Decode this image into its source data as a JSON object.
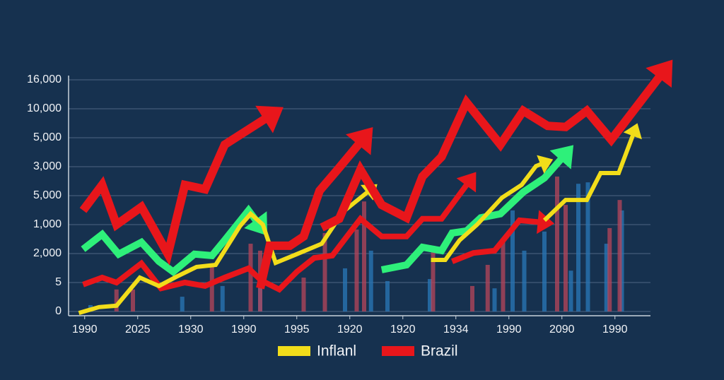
{
  "chart_data": {
    "type": "line",
    "xlim": [
      -0.33,
      11.07
    ],
    "ylim": [
      -0.2,
      8.5
    ],
    "xticks": [
      {
        "value": 0,
        "label": "1990"
      },
      {
        "value": 1,
        "label": "2025"
      },
      {
        "value": 2,
        "label": "1930"
      },
      {
        "value": 3,
        "label": "1990"
      },
      {
        "value": 4,
        "label": "1995"
      },
      {
        "value": 5,
        "label": "1920"
      },
      {
        "value": 6,
        "label": "1920"
      },
      {
        "value": 7,
        "label": "1934"
      },
      {
        "value": 8,
        "label": "1990"
      },
      {
        "value": 9,
        "label": "2090"
      },
      {
        "value": 10,
        "label": "1990"
      }
    ],
    "yticks": [
      0,
      {
        "value": 1,
        "label": "5"
      },
      {
        "value": 2,
        "label": "2,000"
      },
      {
        "value": 3,
        "label": "1,000"
      },
      {
        "value": 4,
        "label": "5,000"
      },
      {
        "value": 5,
        "label": "3,000"
      },
      {
        "value": 6,
        "label": "5,000"
      },
      {
        "value": 7,
        "label": "10,000"
      },
      {
        "value": 8,
        "label": "16,000"
      }
    ],
    "grid": true,
    "legend": "bottom",
    "series": [
      {
        "type": "bar",
        "color": "#2a78b8",
        "x": [
          0.11,
          1.84,
          2.6,
          3.31,
          4.91,
          5.4,
          5.71,
          6.51,
          7.73,
          8.07,
          8.29,
          8.67,
          9.17,
          9.31,
          9.49,
          9.84,
          10.13
        ],
        "values": [
          0.22,
          0.51,
          0.88,
          1.24,
          1.49,
          2.1,
          1.05,
          1.12,
          0.8,
          3.49,
          2.1,
          2.76,
          1.41,
          4.41,
          4.46,
          2.34,
          3.49
        ]
      },
      {
        "type": "bar",
        "color": "#b8455a",
        "x": [
          0.6,
          0.91,
          2.4,
          3.13,
          3.31,
          4.13,
          4.53,
          5.13,
          5.27,
          6.57,
          7.31,
          7.6,
          7.89,
          8.91,
          9.07,
          9.9,
          10.09
        ],
        "values": [
          0.76,
          0.76,
          1.61,
          2.34,
          2.1,
          1.17,
          2.71,
          2.83,
          3.8,
          2.27,
          0.88,
          1.61,
          2.46,
          4.66,
          3.68,
          2.88,
          3.85
        ]
      },
      {
        "color": "#e8161b",
        "x": [
          -0.03,
          0.33,
          0.6,
          1.07,
          1.44,
          1.89,
          2.27,
          2.64,
          3.09,
          3.33,
          3.67,
          4.0,
          4.33,
          4.67,
          5.2,
          5.6,
          6.07,
          6.37,
          6.73,
          7.27,
          null,
          6.93,
          7.33,
          7.73,
          8.2,
          8.67
        ],
        "values": [
          0.93,
          1.17,
          1.0,
          1.66,
          0.8,
          1.0,
          0.88,
          1.17,
          1.49,
          1.07,
          0.76,
          1.37,
          1.85,
          1.93,
          3.2,
          2.59,
          2.59,
          3.2,
          3.2,
          4.54,
          null,
          1.73,
          2.02,
          2.1,
          3.15,
          3.07
        ]
      },
      {
        "color": "#2ef07a",
        "x": [
          -0.03,
          0.33,
          0.64,
          1.07,
          1.4,
          1.67,
          2.07,
          2.4,
          2.64,
          3.09,
          3.31,
          null,
          5.6,
          6.07,
          6.37,
          6.73,
          6.93,
          7.2,
          7.47,
          7.84,
          8.27,
          8.67,
          9.07
        ],
        "values": [
          2.15,
          2.66,
          1.98,
          2.39,
          1.73,
          1.37,
          1.98,
          1.93,
          2.46,
          3.49,
          2.95,
          null,
          1.44,
          1.61,
          2.22,
          2.1,
          2.71,
          2.78,
          3.24,
          3.37,
          4.12,
          4.61,
          5.44
        ]
      },
      {
        "name": "Inflanl",
        "color": "#f2dd1a",
        "x": [
          -0.11,
          0.27,
          0.6,
          1.04,
          1.4,
          1.73,
          2.11,
          2.47,
          2.93,
          3.13,
          3.36,
          3.6,
          4.0,
          4.47,
          4.87,
          5.4,
          null,
          6.53,
          6.8,
          7.07,
          7.4,
          7.87,
          8.24,
          8.51,
          8.69,
          null,
          8.67,
          9.07,
          9.47,
          9.73,
          10.07,
          10.37
        ],
        "values": [
          -0.05,
          0.15,
          0.2,
          1.17,
          0.88,
          1.2,
          1.54,
          1.61,
          2.95,
          3.37,
          3.0,
          1.68,
          1.98,
          2.34,
          3.44,
          4.22,
          null,
          1.78,
          1.78,
          2.46,
          3.0,
          3.93,
          4.37,
          5.02,
          5.15,
          null,
          3.15,
          3.85,
          3.85,
          4.78,
          4.78,
          6.24
        ]
      },
      {
        "name": "Brazil",
        "color": "#e8161b",
        "x": [
          -0.03,
          0.33,
          0.6,
          1.07,
          1.57,
          1.89,
          2.27,
          2.64,
          3.53,
          null,
          3.31,
          3.49,
          3.87,
          4.13,
          4.43,
          4.77,
          5.27,
          null,
          4.47,
          4.8,
          5.2,
          5.6,
          6.07,
          6.37,
          6.73,
          7.2,
          7.84,
          8.27,
          8.73,
          9.07,
          9.47,
          9.93,
          10.93
        ],
        "values": [
          3.49,
          4.37,
          3.0,
          3.61,
          1.98,
          4.37,
          4.22,
          5.76,
          6.8,
          null,
          0.8,
          2.27,
          2.27,
          2.59,
          4.17,
          4.9,
          6.0,
          null,
          2.9,
          3.2,
          4.9,
          3.68,
          3.24,
          4.66,
          5.34,
          7.22,
          5.76,
          6.93,
          6.41,
          6.37,
          6.93,
          5.93,
          8.32
        ]
      }
    ]
  }
}
